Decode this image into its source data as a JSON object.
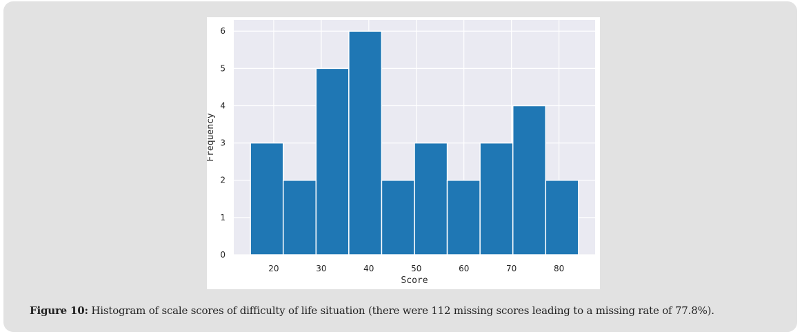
{
  "caption": {
    "label": "Figure 10:",
    "text": " Histogram of scale scores of difficulty of life situation (there were 112 missing scores leading to a missing rate of 77.8%)."
  },
  "colors": {
    "bar": "#1f77b4",
    "plot_bg": "#eaeaf2",
    "grid": "#ffffff",
    "panel": "#e2e2e2"
  },
  "chart_data": {
    "type": "bar",
    "subtype": "histogram",
    "title": "",
    "xlabel": "Score",
    "ylabel": "Frequency",
    "bin_edges": [
      15.1,
      22.0,
      28.9,
      35.8,
      42.7,
      49.6,
      56.5,
      63.4,
      70.3,
      77.2,
      84.1
    ],
    "values": [
      3,
      2,
      5,
      6,
      2,
      3,
      2,
      3,
      4,
      2
    ],
    "xlim": [
      11.6,
      87.6
    ],
    "ylim": [
      0,
      6.3
    ],
    "xticks": [
      20,
      30,
      40,
      50,
      60,
      70,
      80
    ],
    "yticks": [
      0,
      1,
      2,
      3,
      4,
      5,
      6
    ],
    "grid": true,
    "legend": "none"
  }
}
